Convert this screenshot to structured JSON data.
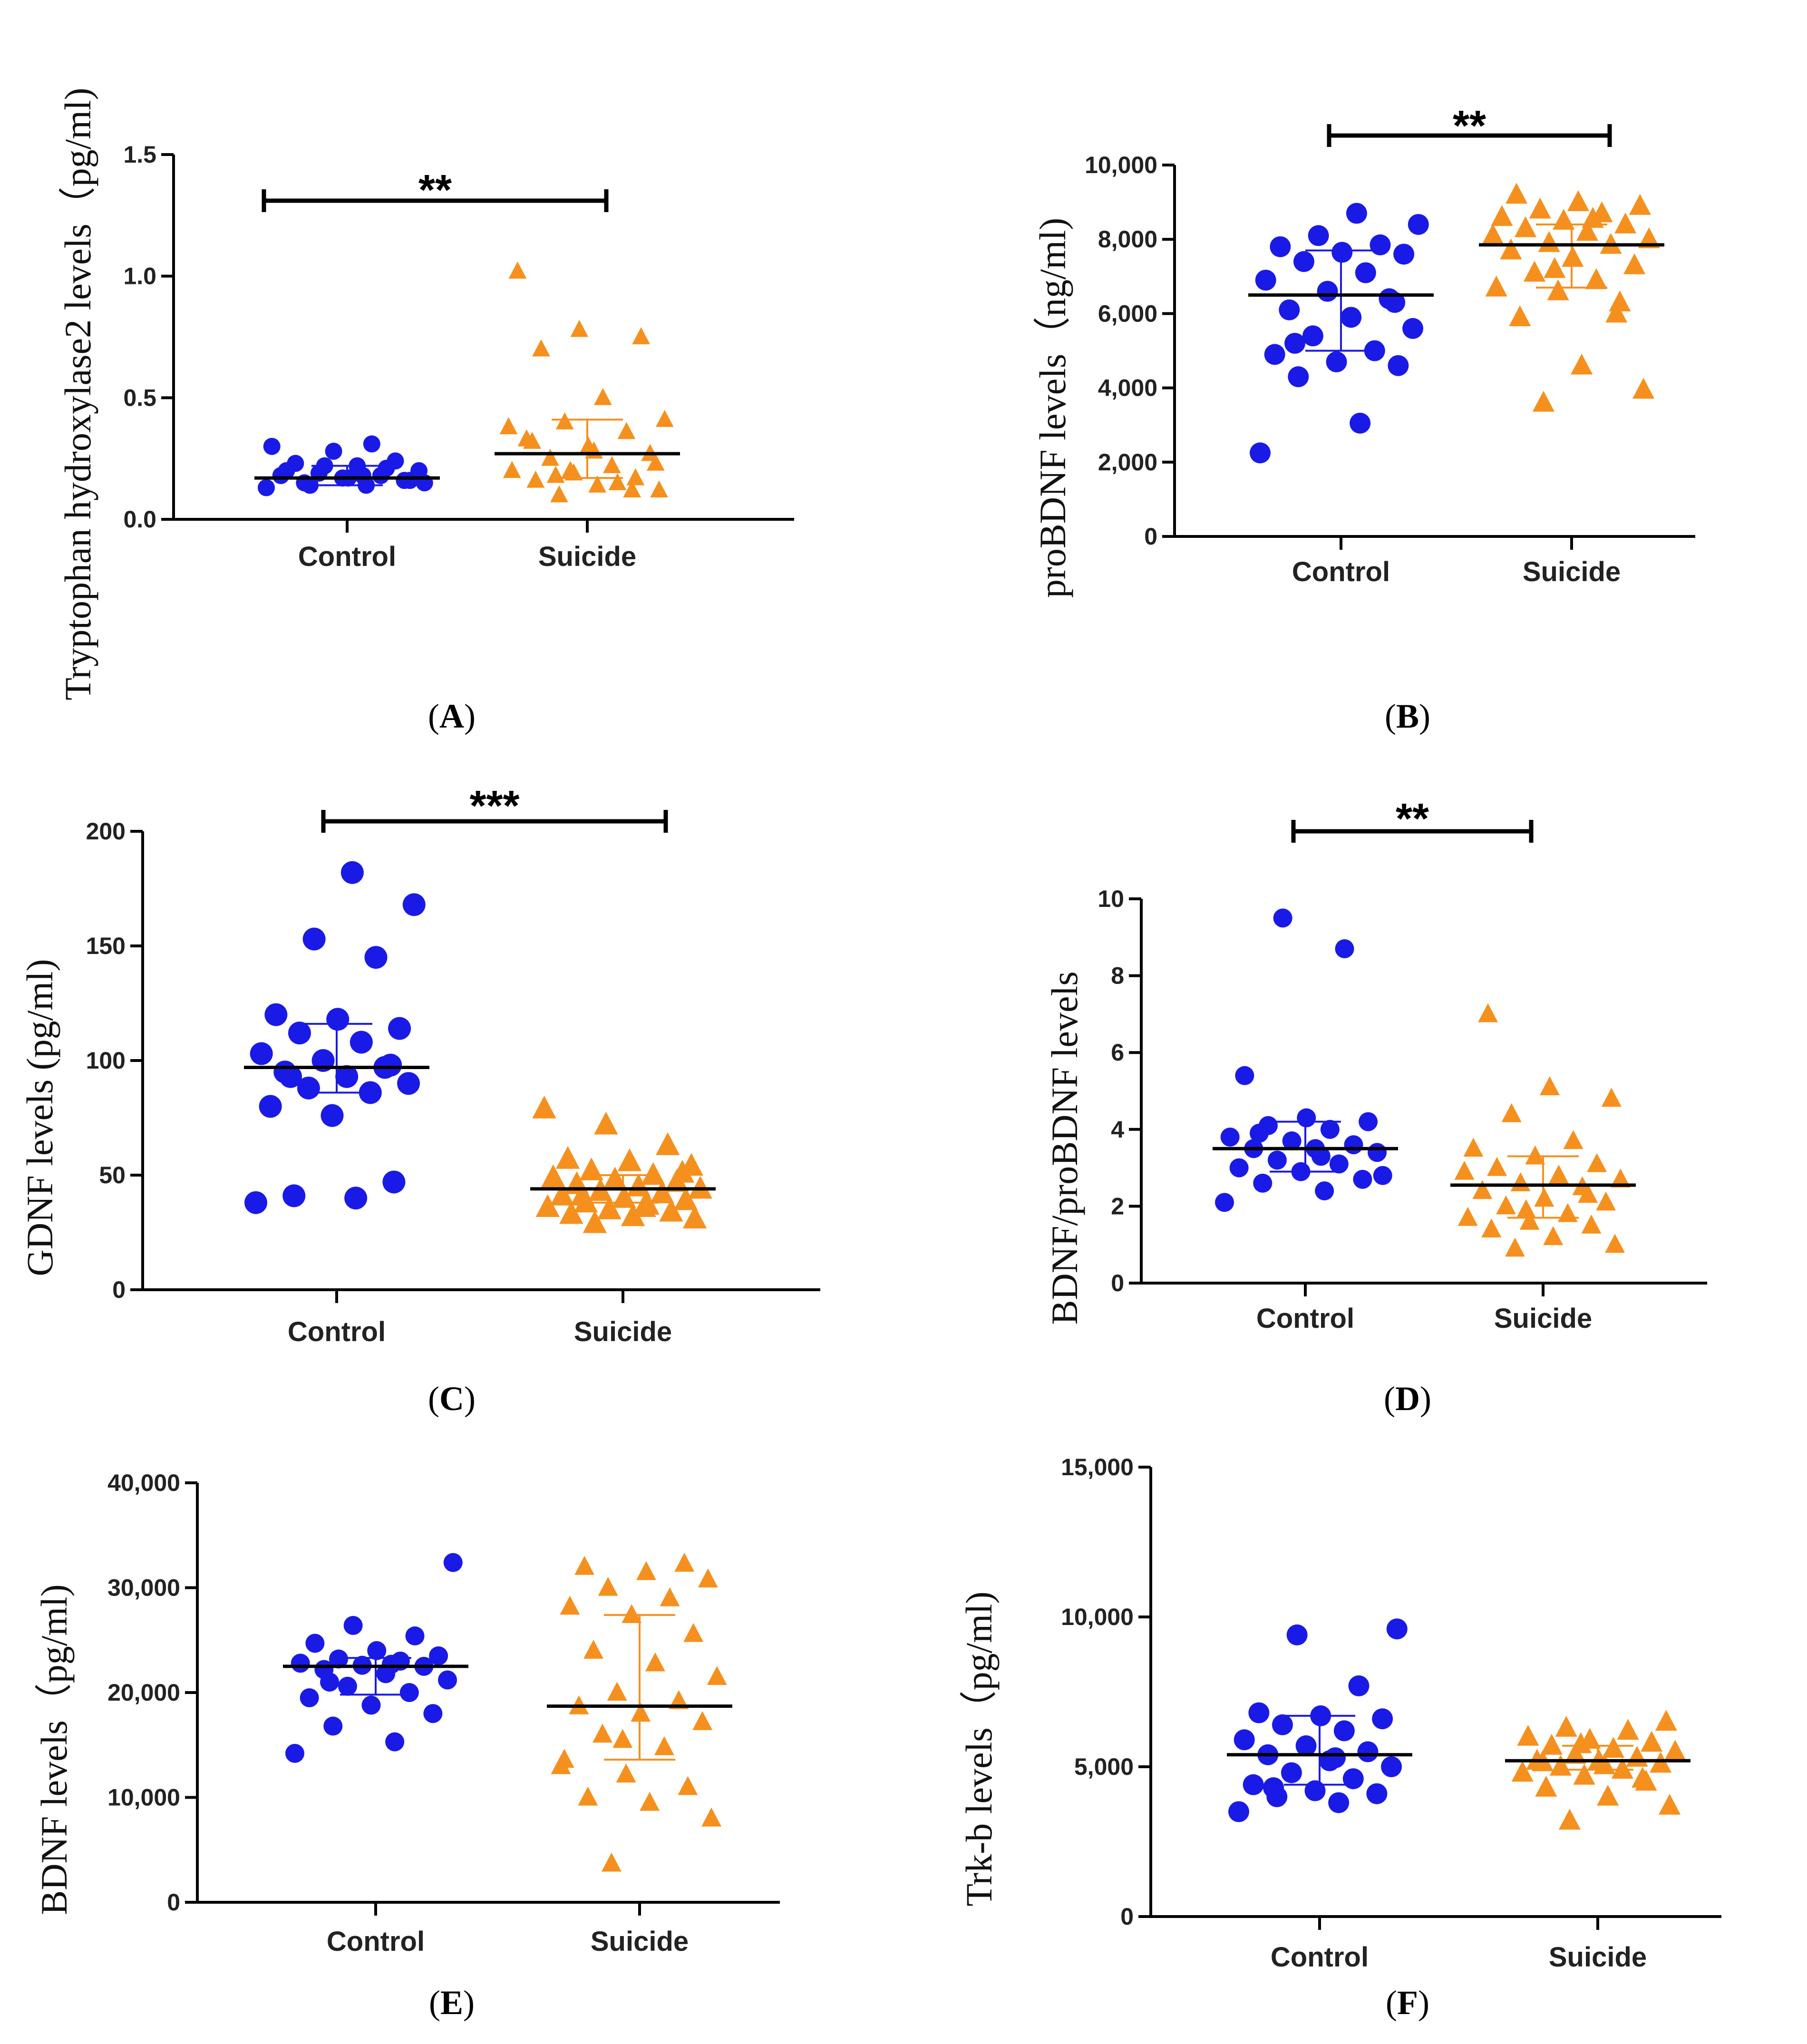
{
  "colors": {
    "control": "#1a1ae6",
    "suicide": "#f5901e",
    "axis": "#000000"
  },
  "chart_data": [
    {
      "id": "A",
      "type": "scatter",
      "caption": "A",
      "ylabel": "Tryptophan hydroxylase2 levels（pg/ml)",
      "categories": [
        "Control",
        "Suicide"
      ],
      "ylim": [
        0,
        1.5
      ],
      "yticks": [
        0.0,
        0.5,
        1.0,
        1.5
      ],
      "ytick_labels": [
        "0.0",
        "0.5",
        "1.0",
        "1.5"
      ],
      "significance": "**",
      "series": [
        {
          "name": "Control",
          "marker": "circle",
          "median": 0.17,
          "iqr": [
            0.14,
            0.22
          ],
          "values": [
            0.13,
            0.14,
            0.15,
            0.16,
            0.17,
            0.18,
            0.18,
            0.19,
            0.2,
            0.22,
            0.23,
            0.24,
            0.28,
            0.3,
            0.31,
            0.14,
            0.16,
            0.17,
            0.2,
            0.21,
            0.22,
            0.15,
            0.18
          ]
        },
        {
          "name": "Suicide",
          "marker": "triangle",
          "median": 0.27,
          "iqr": [
            0.17,
            0.41
          ],
          "values": [
            0.1,
            0.12,
            0.14,
            0.16,
            0.17,
            0.19,
            0.2,
            0.22,
            0.25,
            0.27,
            0.3,
            0.33,
            0.36,
            0.4,
            0.41,
            0.5,
            0.7,
            0.75,
            0.78,
            1.02,
            0.15,
            0.18,
            0.23,
            0.28,
            0.32,
            0.12,
            0.2,
            0.38
          ]
        }
      ]
    },
    {
      "id": "B",
      "type": "scatter",
      "caption": "B",
      "ylabel": "proBDNF levels（ng/ml)",
      "categories": [
        "Control",
        "Suicide"
      ],
      "ylim": [
        0,
        10000
      ],
      "yticks": [
        0,
        2000,
        4000,
        6000,
        8000,
        10000
      ],
      "ytick_labels": [
        "0",
        "2,000",
        "4,000",
        "6,000",
        "8,000",
        "10,000"
      ],
      "significance": "**",
      "series": [
        {
          "name": "Control",
          "marker": "circle",
          "median": 6500,
          "iqr": [
            5000,
            7700
          ],
          "values": [
            2250,
            3050,
            4300,
            4600,
            4700,
            4900,
            5000,
            5400,
            5600,
            5900,
            6100,
            6400,
            6600,
            6900,
            7100,
            7400,
            7600,
            7650,
            7800,
            7850,
            8100,
            8400,
            8700,
            5200,
            6300
          ]
        },
        {
          "name": "Suicide",
          "marker": "triangle",
          "median": 7850,
          "iqr": [
            6700,
            8400
          ],
          "values": [
            3600,
            3950,
            4600,
            5900,
            6300,
            6600,
            6700,
            6900,
            7100,
            7300,
            7500,
            7700,
            7850,
            7900,
            8000,
            8200,
            8300,
            8400,
            8500,
            8600,
            8700,
            8800,
            8900,
            9000,
            9200,
            6000,
            7200,
            8100,
            8550
          ]
        }
      ]
    },
    {
      "id": "C",
      "type": "scatter",
      "caption": "C",
      "ylabel": "GDNF levels (pg/ml)",
      "categories": [
        "Control",
        "Suicide"
      ],
      "ylim": [
        0,
        200
      ],
      "yticks": [
        0,
        50,
        100,
        150,
        200
      ],
      "ytick_labels": [
        "0",
        "50",
        "100",
        "150",
        "200"
      ],
      "significance": "***",
      "series": [
        {
          "name": "Control",
          "marker": "circle",
          "median": 97,
          "iqr": [
            86,
            116
          ],
          "values": [
            38,
            40,
            41,
            47,
            76,
            80,
            86,
            88,
            90,
            93,
            95,
            97,
            100,
            103,
            108,
            112,
            114,
            118,
            120,
            145,
            153,
            168,
            182,
            93,
            98
          ]
        },
        {
          "name": "Suicide",
          "marker": "triangle",
          "median": 44,
          "iqr": [
            38,
            50
          ],
          "values": [
            29,
            31,
            32,
            33,
            34,
            35,
            36,
            37,
            38,
            39,
            40,
            41,
            42,
            43,
            44,
            45,
            46,
            47,
            48,
            49,
            50,
            52,
            54,
            56,
            57,
            63,
            72,
            79,
            36,
            41,
            51
          ]
        }
      ]
    },
    {
      "id": "D",
      "type": "scatter",
      "caption": "D",
      "ylabel": "BDNF/proBDNF levels",
      "categories": [
        "Control",
        "Suicide"
      ],
      "ylim": [
        0,
        10
      ],
      "yticks": [
        0,
        2,
        4,
        6,
        8,
        10
      ],
      "ytick_labels": [
        "0",
        "2",
        "4",
        "6",
        "8",
        "10"
      ],
      "significance": "**",
      "series": [
        {
          "name": "Control",
          "marker": "circle",
          "median": 3.5,
          "iqr": [
            2.9,
            4.2
          ],
          "values": [
            2.1,
            2.4,
            2.6,
            2.7,
            2.9,
            3.0,
            3.1,
            3.2,
            3.4,
            3.5,
            3.5,
            3.6,
            3.7,
            3.8,
            4.0,
            4.1,
            4.2,
            4.3,
            5.4,
            8.7,
            9.5,
            2.8,
            3.3,
            3.9
          ]
        },
        {
          "name": "Suicide",
          "marker": "triangle",
          "median": 2.55,
          "iqr": [
            1.7,
            3.3
          ],
          "values": [
            0.9,
            1.0,
            1.2,
            1.4,
            1.5,
            1.6,
            1.7,
            1.8,
            2.0,
            2.1,
            2.2,
            2.4,
            2.5,
            2.6,
            2.7,
            2.8,
            3.0,
            3.1,
            3.3,
            3.5,
            3.7,
            4.4,
            4.8,
            5.1,
            7.0,
            2.3,
            1.9,
            2.9
          ]
        }
      ]
    },
    {
      "id": "E",
      "type": "scatter",
      "caption": "E",
      "ylabel": "BDNF levels（pg/ml)",
      "categories": [
        "Control",
        "Suicide"
      ],
      "ylim": [
        0,
        40000
      ],
      "yticks": [
        0,
        10000,
        20000,
        30000,
        40000
      ],
      "ytick_labels": [
        "0",
        "10,000",
        "20,000",
        "30,000",
        "40,000"
      ],
      "significance": "",
      "series": [
        {
          "name": "Control",
          "marker": "circle",
          "median": 22500,
          "iqr": [
            19800,
            23300
          ],
          "values": [
            14200,
            15300,
            16800,
            18000,
            18800,
            19500,
            20000,
            20600,
            21200,
            21800,
            22200,
            22500,
            22600,
            22800,
            23000,
            23200,
            23500,
            24000,
            24700,
            25400,
            26400,
            32400,
            22700,
            21000
          ]
        },
        {
          "name": "Suicide",
          "marker": "triangle",
          "median": 18700,
          "iqr": [
            13600,
            27400
          ],
          "values": [
            3700,
            8000,
            9500,
            10000,
            11000,
            12200,
            13600,
            14800,
            16000,
            17200,
            18000,
            18700,
            19200,
            20000,
            21500,
            22800,
            24000,
            25600,
            27400,
            28200,
            29000,
            30000,
            30800,
            31500,
            32000,
            32300,
            15500,
            13000
          ]
        }
      ]
    },
    {
      "id": "F",
      "type": "scatter",
      "caption": "F",
      "ylabel": "Trk-b levels（pg/ml)",
      "categories": [
        "Control",
        "Suicide"
      ],
      "ylim": [
        0,
        15000
      ],
      "yticks": [
        0,
        5000,
        10000,
        15000
      ],
      "ytick_labels": [
        "0",
        "5,000",
        "10,000",
        "15,000"
      ],
      "significance": "",
      "series": [
        {
          "name": "Control",
          "marker": "circle",
          "median": 5400,
          "iqr": [
            4400,
            6700
          ],
          "values": [
            3500,
            3800,
            4000,
            4100,
            4200,
            4400,
            4600,
            4800,
            5000,
            5200,
            5400,
            5500,
            5700,
            5900,
            6200,
            6400,
            6600,
            6700,
            6800,
            7700,
            9400,
            9600,
            5300,
            4300
          ]
        },
        {
          "name": "Suicide",
          "marker": "triangle",
          "median": 5200,
          "iqr": [
            4900,
            5700
          ],
          "values": [
            3200,
            3700,
            4000,
            4300,
            4500,
            4700,
            4800,
            4900,
            5000,
            5100,
            5200,
            5200,
            5300,
            5400,
            5500,
            5600,
            5700,
            5800,
            5900,
            6000,
            6200,
            6300,
            6500,
            5050,
            5150,
            4600,
            5750
          ]
        }
      ]
    }
  ]
}
